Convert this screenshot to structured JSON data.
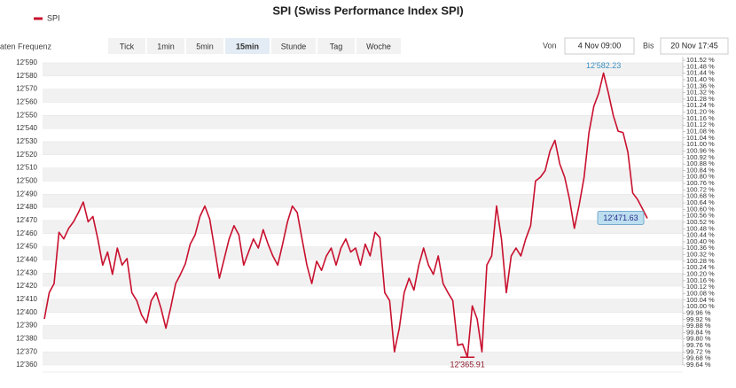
{
  "chart_data": {
    "type": "line",
    "title": "SPI (Swiss Performance Index SPI)",
    "controls": {
      "label": "Daten Frequenz",
      "options": [
        "Tick",
        "1min",
        "5min",
        "15min",
        "Stunde",
        "Tag",
        "Woche"
      ],
      "selected": "15min"
    },
    "range": {
      "from_label": "Von",
      "from": "4 Nov 09:00",
      "to_label": "Bis",
      "to": "20 Nov 17:45"
    },
    "series": [
      {
        "name": "SPI",
        "color": "#c8102e",
        "values": [
          12395,
          12415,
          12422,
          12461,
          12456,
          12464,
          12469,
          12476,
          12484,
          12469,
          12473,
          12456,
          12436,
          12446,
          12429,
          12449,
          12436,
          12441,
          12415,
          12409,
          12398,
          12392,
          12409,
          12415,
          12403,
          12388,
          12404,
          12422,
          12429,
          12437,
          12452,
          12459,
          12473,
          12481,
          12471,
          12449,
          12426,
          12441,
          12456,
          12466,
          12459,
          12436,
          12446,
          12456,
          12449,
          12463,
          12452,
          12443,
          12436,
          12452,
          12469,
          12481,
          12476,
          12456,
          12436,
          12422,
          12439,
          12432,
          12443,
          12449,
          12436,
          12449,
          12456,
          12446,
          12449,
          12436,
          12452,
          12443,
          12461,
          12457,
          12415,
          12409,
          12370,
          12388,
          12415,
          12426,
          12417,
          12436,
          12449,
          12436,
          12429,
          12443,
          12422,
          12415,
          12409,
          12375,
          12376,
          12365.91,
          12405,
          12395,
          12370,
          12436,
          12443,
          12481,
          12456,
          12415,
          12443,
          12449,
          12443,
          12456,
          12466,
          12500,
          12503,
          12508,
          12523,
          12531,
          12513,
          12503,
          12486,
          12464,
          12482,
          12503,
          12537,
          12557,
          12567,
          12582.23,
          12567,
          12550,
          12538,
          12537,
          12522,
          12491,
          12486,
          12479,
          12471.63
        ]
      }
    ],
    "annotations": [
      {
        "value": 12582.23,
        "label": "12'582.23",
        "style": "max"
      },
      {
        "value": 12365.91,
        "label": "12'365.91",
        "style": "min"
      },
      {
        "value": 12471.63,
        "label": "12'471.63",
        "style": "last"
      }
    ],
    "ylim": [
      12360,
      12592
    ],
    "yticks": [
      {
        "value": 12360,
        "label": "12'360"
      },
      {
        "value": 12370,
        "label": "12'370"
      },
      {
        "value": 12380,
        "label": "12'380"
      },
      {
        "value": 12390,
        "label": "12'390"
      },
      {
        "value": 12400,
        "label": "12'400"
      },
      {
        "value": 12410,
        "label": "12'410"
      },
      {
        "value": 12420,
        "label": "12'420"
      },
      {
        "value": 12430,
        "label": "12'430"
      },
      {
        "value": 12440,
        "label": "12'440"
      },
      {
        "value": 12450,
        "label": "12'450"
      },
      {
        "value": 12460,
        "label": "12'460"
      },
      {
        "value": 12470,
        "label": "12'470"
      },
      {
        "value": 12480,
        "label": "12'480"
      },
      {
        "value": 12490,
        "label": "12'490"
      },
      {
        "value": 12500,
        "label": "12'500"
      },
      {
        "value": 12510,
        "label": "12'510"
      },
      {
        "value": 12520,
        "label": "12'520"
      },
      {
        "value": 12530,
        "label": "12'530"
      },
      {
        "value": 12540,
        "label": "12'540"
      },
      {
        "value": 12550,
        "label": "12'550"
      },
      {
        "value": 12560,
        "label": "12'560"
      },
      {
        "value": 12570,
        "label": "12'570"
      },
      {
        "value": 12580,
        "label": "12'580"
      },
      {
        "value": 12590,
        "label": "12'590"
      }
    ],
    "y2lim": [
      99.64,
      101.52
    ],
    "y2ticks": [
      {
        "value": 99.64,
        "label": "99.64 %"
      },
      {
        "value": 99.68,
        "label": "99.68 %"
      },
      {
        "value": 99.72,
        "label": "99.72 %"
      },
      {
        "value": 99.76,
        "label": "99.76 %"
      },
      {
        "value": 99.8,
        "label": "99.80 %"
      },
      {
        "value": 99.84,
        "label": "99.84 %"
      },
      {
        "value": 99.88,
        "label": "99.88 %"
      },
      {
        "value": 99.92,
        "label": "99.92 %"
      },
      {
        "value": 99.96,
        "label": "99.96 %"
      },
      {
        "value": 100.0,
        "label": "100.00 %"
      },
      {
        "value": 100.04,
        "label": "100.04 %"
      },
      {
        "value": 100.08,
        "label": "100.08 %"
      },
      {
        "value": 100.12,
        "label": "100.12 %"
      },
      {
        "value": 100.16,
        "label": "100.16 %"
      },
      {
        "value": 100.2,
        "label": "100.20 %"
      },
      {
        "value": 100.24,
        "label": "100.24 %"
      },
      {
        "value": 100.28,
        "label": "100.28 %"
      },
      {
        "value": 100.32,
        "label": "100.32 %"
      },
      {
        "value": 100.36,
        "label": "100.36 %"
      },
      {
        "value": 100.4,
        "label": "100.40 %"
      },
      {
        "value": 100.44,
        "label": "100.44 %"
      },
      {
        "value": 100.48,
        "label": "100.48 %"
      },
      {
        "value": 100.52,
        "label": "100.52 %"
      },
      {
        "value": 100.56,
        "label": "100.56 %"
      },
      {
        "value": 100.6,
        "label": "100.60 %"
      },
      {
        "value": 100.64,
        "label": "100.64 %"
      },
      {
        "value": 100.68,
        "label": "100.68 %"
      },
      {
        "value": 100.72,
        "label": "100.72 %"
      },
      {
        "value": 100.76,
        "label": "100.76 %"
      },
      {
        "value": 100.8,
        "label": "100.80 %"
      },
      {
        "value": 100.84,
        "label": "100.84 %"
      },
      {
        "value": 100.88,
        "label": "100.88 %"
      },
      {
        "value": 100.92,
        "label": "100.92 %"
      },
      {
        "value": 100.96,
        "label": "100.96 %"
      },
      {
        "value": 101.0,
        "label": "101.00 %"
      },
      {
        "value": 101.04,
        "label": "101.04 %"
      },
      {
        "value": 101.08,
        "label": "101.08 %"
      },
      {
        "value": 101.12,
        "label": "101.12 %"
      },
      {
        "value": 101.16,
        "label": "101.16 %"
      },
      {
        "value": 101.2,
        "label": "101.20 %"
      },
      {
        "value": 101.24,
        "label": "101.24 %"
      },
      {
        "value": 101.28,
        "label": "101.28 %"
      },
      {
        "value": 101.32,
        "label": "101.32 %"
      },
      {
        "value": 101.36,
        "label": "101.36 %"
      },
      {
        "value": 101.4,
        "label": "101.40 %"
      },
      {
        "value": 101.44,
        "label": "101.44 %"
      },
      {
        "value": 101.48,
        "label": "101.48 %"
      },
      {
        "value": 101.52,
        "label": "101.52 %"
      }
    ],
    "grid": true
  }
}
